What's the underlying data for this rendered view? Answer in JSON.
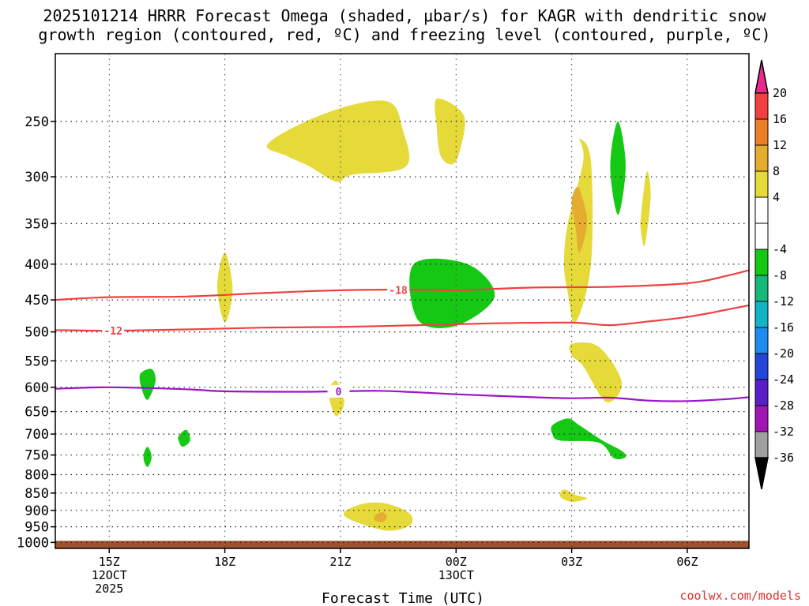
{
  "chart_data": {
    "type": "contour",
    "title_line1": "2025101214 HRRR Forecast Omega (shaded, μbar/s) for KAGR with dendritic snow",
    "title_line2": "growth region (contoured, red, ºC) and freezing level (contoured, purple, ºC)",
    "xlabel": "Forecast Time (UTC)",
    "credit": "coolwx.com/models",
    "x_range_hours": [
      -0.4,
      17.6
    ],
    "p_range_hpa": [
      1020,
      200
    ],
    "x_ticks": [
      {
        "h": 1,
        "line1": "15Z",
        "line2": "12OCT",
        "line3": "2025"
      },
      {
        "h": 4,
        "line1": "18Z",
        "line2": "",
        "line3": ""
      },
      {
        "h": 7,
        "line1": "21Z",
        "line2": "",
        "line3": ""
      },
      {
        "h": 10,
        "line1": "00Z",
        "line2": "13OCT",
        "line3": ""
      },
      {
        "h": 13,
        "line1": "03Z",
        "line2": "",
        "line3": ""
      },
      {
        "h": 16,
        "line1": "06Z",
        "line2": "",
        "line3": ""
      }
    ],
    "y_ticks": [
      250,
      300,
      350,
      400,
      450,
      500,
      550,
      600,
      650,
      700,
      750,
      800,
      850,
      900,
      950,
      1000
    ],
    "colorbar": [
      {
        "label": "20",
        "color": "#e82a8c"
      },
      {
        "label": "16",
        "color": "#f04040"
      },
      {
        "label": "12",
        "color": "#ef7f26"
      },
      {
        "label": "8",
        "color": "#e5ad2f"
      },
      {
        "label": "4",
        "color": "#e5da3a"
      },
      {
        "label": "",
        "color": "#ffffff"
      },
      {
        "label": "-4",
        "color": "#ffffff"
      },
      {
        "label": "-8",
        "color": "#14c814"
      },
      {
        "label": "-12",
        "color": "#18b878"
      },
      {
        "label": "-16",
        "color": "#14b4c8"
      },
      {
        "label": "-20",
        "color": "#1e8cf0"
      },
      {
        "label": "-24",
        "color": "#2446d8"
      },
      {
        "label": "-28",
        "color": "#5a1ec8"
      },
      {
        "label": "-32",
        "color": "#a014b4"
      },
      {
        "label": "-36",
        "color": "#a0a0a0"
      }
    ],
    "contours": [
      {
        "name": "dgz-minus18",
        "color": "#f04040",
        "label": "-18",
        "label_h": 8.5,
        "points": [
          [
            -0.4,
            450
          ],
          [
            1,
            446
          ],
          [
            3,
            445
          ],
          [
            5,
            440
          ],
          [
            7,
            436
          ],
          [
            9,
            435
          ],
          [
            10,
            436
          ],
          [
            12,
            432
          ],
          [
            14,
            431
          ],
          [
            16,
            426
          ],
          [
            17,
            416
          ],
          [
            17.6,
            408
          ]
        ]
      },
      {
        "name": "dgz-minus12",
        "color": "#f04040",
        "label": "-12",
        "label_h": 1.1,
        "points": [
          [
            -0.4,
            497
          ],
          [
            1,
            498
          ],
          [
            3,
            496
          ],
          [
            5,
            493
          ],
          [
            7,
            492
          ],
          [
            9,
            489
          ],
          [
            11,
            486
          ],
          [
            13,
            485
          ],
          [
            14,
            489
          ],
          [
            15,
            483
          ],
          [
            16,
            476
          ],
          [
            17,
            465
          ],
          [
            17.6,
            458
          ]
        ]
      },
      {
        "name": "freezing-level-0",
        "color": "#9a14c8",
        "label": "0",
        "label_h": 6.95,
        "points": [
          [
            -0.4,
            603
          ],
          [
            1,
            600
          ],
          [
            3,
            604
          ],
          [
            4,
            608
          ],
          [
            6,
            609
          ],
          [
            7,
            608
          ],
          [
            8,
            607
          ],
          [
            9,
            610
          ],
          [
            10,
            614
          ],
          [
            12,
            620
          ],
          [
            13,
            622
          ],
          [
            14,
            621
          ],
          [
            15,
            627
          ],
          [
            16,
            628
          ],
          [
            17,
            624
          ],
          [
            17.6,
            620
          ]
        ]
      }
    ],
    "omega_regions": [
      {
        "value_range": "4 to 8",
        "color": "#e5da3a",
        "points": [
          [
            9.5,
            232
          ],
          [
            10.2,
            245
          ],
          [
            10.1,
            275
          ],
          [
            9.9,
            288
          ],
          [
            9.6,
            280
          ],
          [
            9.5,
            255
          ]
        ]
      },
      {
        "value_range": "4 to 8",
        "color": "#e5da3a",
        "points": [
          [
            5.1,
            270
          ],
          [
            6.1,
            250
          ],
          [
            7.4,
            236
          ],
          [
            8.3,
            235
          ],
          [
            8.6,
            255
          ],
          [
            8.7,
            290
          ],
          [
            7.3,
            298
          ],
          [
            6.9,
            305
          ],
          [
            6.2,
            290
          ],
          [
            5.6,
            280
          ]
        ]
      },
      {
        "value_range": "4 to 8",
        "color": "#e5da3a",
        "points": [
          [
            12.9,
            350
          ],
          [
            13.3,
            285
          ],
          [
            13.2,
            265
          ],
          [
            13.5,
            285
          ],
          [
            13.5,
            400
          ],
          [
            13.1,
            485
          ],
          [
            12.9,
            440
          ],
          [
            12.8,
            400
          ]
        ]
      },
      {
        "value_range": "8 to 12",
        "color": "#e5ad2f",
        "points": [
          [
            13.0,
            325
          ],
          [
            13.1,
            355
          ],
          [
            13.2,
            385
          ],
          [
            13.4,
            350
          ],
          [
            13.3,
            325
          ],
          [
            13.15,
            310
          ]
        ]
      },
      {
        "value_range": "4 to 8",
        "color": "#e5da3a",
        "points": [
          [
            14.8,
            340
          ],
          [
            14.95,
            295
          ],
          [
            15.05,
            320
          ],
          [
            14.9,
            375
          ],
          [
            14.8,
            360
          ]
        ]
      },
      {
        "value_range": "-8 to -4",
        "color": "#14c814",
        "points": [
          [
            14.0,
            290
          ],
          [
            14.2,
            250
          ],
          [
            14.4,
            290
          ],
          [
            14.2,
            340
          ]
        ]
      },
      {
        "value_range": "4 to 8",
        "color": "#e5da3a",
        "points": [
          [
            3.8,
            430
          ],
          [
            4.0,
            385
          ],
          [
            4.2,
            435
          ],
          [
            4.0,
            485
          ]
        ]
      },
      {
        "value_range": "-8 to -4",
        "color": "#14c814",
        "points": [
          [
            8.9,
            400
          ],
          [
            10.3,
            400
          ],
          [
            11.0,
            445
          ],
          [
            10.0,
            490
          ],
          [
            9.0,
            480
          ]
        ]
      },
      {
        "value_range": "4 to 8",
        "color": "#e5da3a",
        "points": [
          [
            13.0,
            520
          ],
          [
            13.7,
            525
          ],
          [
            14.3,
            590
          ],
          [
            13.9,
            630
          ],
          [
            13.3,
            560
          ],
          [
            13.0,
            540
          ]
        ]
      },
      {
        "value_range": "-8 to -4",
        "color": "#14c814",
        "points": [
          [
            1.8,
            575
          ],
          [
            2.1,
            565
          ],
          [
            2.2,
            588
          ],
          [
            2.0,
            625
          ],
          [
            1.85,
            605
          ]
        ]
      },
      {
        "value_range": "4 to 8",
        "color": "#e5da3a",
        "points": [
          [
            6.7,
            605
          ],
          [
            6.9,
            588
          ],
          [
            7.1,
            630
          ],
          [
            6.9,
            660
          ],
          [
            6.75,
            635
          ]
        ]
      },
      {
        "value_range": "-8 to -4",
        "color": "#14c814",
        "points": [
          [
            1.9,
            745
          ],
          [
            2.0,
            730
          ],
          [
            2.1,
            755
          ],
          [
            2.0,
            780
          ],
          [
            1.9,
            765
          ]
        ]
      },
      {
        "value_range": "-8 to -4",
        "color": "#14c814",
        "points": [
          [
            2.8,
            705
          ],
          [
            3.0,
            690
          ],
          [
            3.1,
            715
          ],
          [
            2.9,
            730
          ],
          [
            2.8,
            715
          ]
        ]
      },
      {
        "value_range": "-8 to -4",
        "color": "#14c814",
        "points": [
          [
            12.5,
            680
          ],
          [
            12.9,
            665
          ],
          [
            13.2,
            680
          ],
          [
            13.8,
            715
          ],
          [
            14.3,
            740
          ],
          [
            14.4,
            755
          ],
          [
            14.1,
            758
          ],
          [
            13.7,
            720
          ],
          [
            12.7,
            715
          ],
          [
            12.5,
            700
          ]
        ]
      },
      {
        "value_range": "4 to 8",
        "color": "#e5da3a",
        "points": [
          [
            12.7,
            860
          ],
          [
            12.8,
            840
          ],
          [
            13.1,
            855
          ],
          [
            13.4,
            865
          ],
          [
            13.0,
            875
          ]
        ]
      },
      {
        "value_range": "4 to 8",
        "color": "#e5da3a",
        "points": [
          [
            7.1,
            905
          ],
          [
            7.6,
            880
          ],
          [
            8.2,
            880
          ],
          [
            8.8,
            910
          ],
          [
            8.8,
            945
          ],
          [
            8.2,
            962
          ],
          [
            7.3,
            930
          ]
        ]
      },
      {
        "value_range": "8 to 12",
        "color": "#e5ad2f",
        "points": [
          [
            7.9,
            915
          ],
          [
            8.1,
            905
          ],
          [
            8.2,
            920
          ],
          [
            8.1,
            935
          ],
          [
            7.9,
            930
          ]
        ]
      }
    ],
    "ground": {
      "color": "#a0522d",
      "top_hpa": 995
    }
  }
}
